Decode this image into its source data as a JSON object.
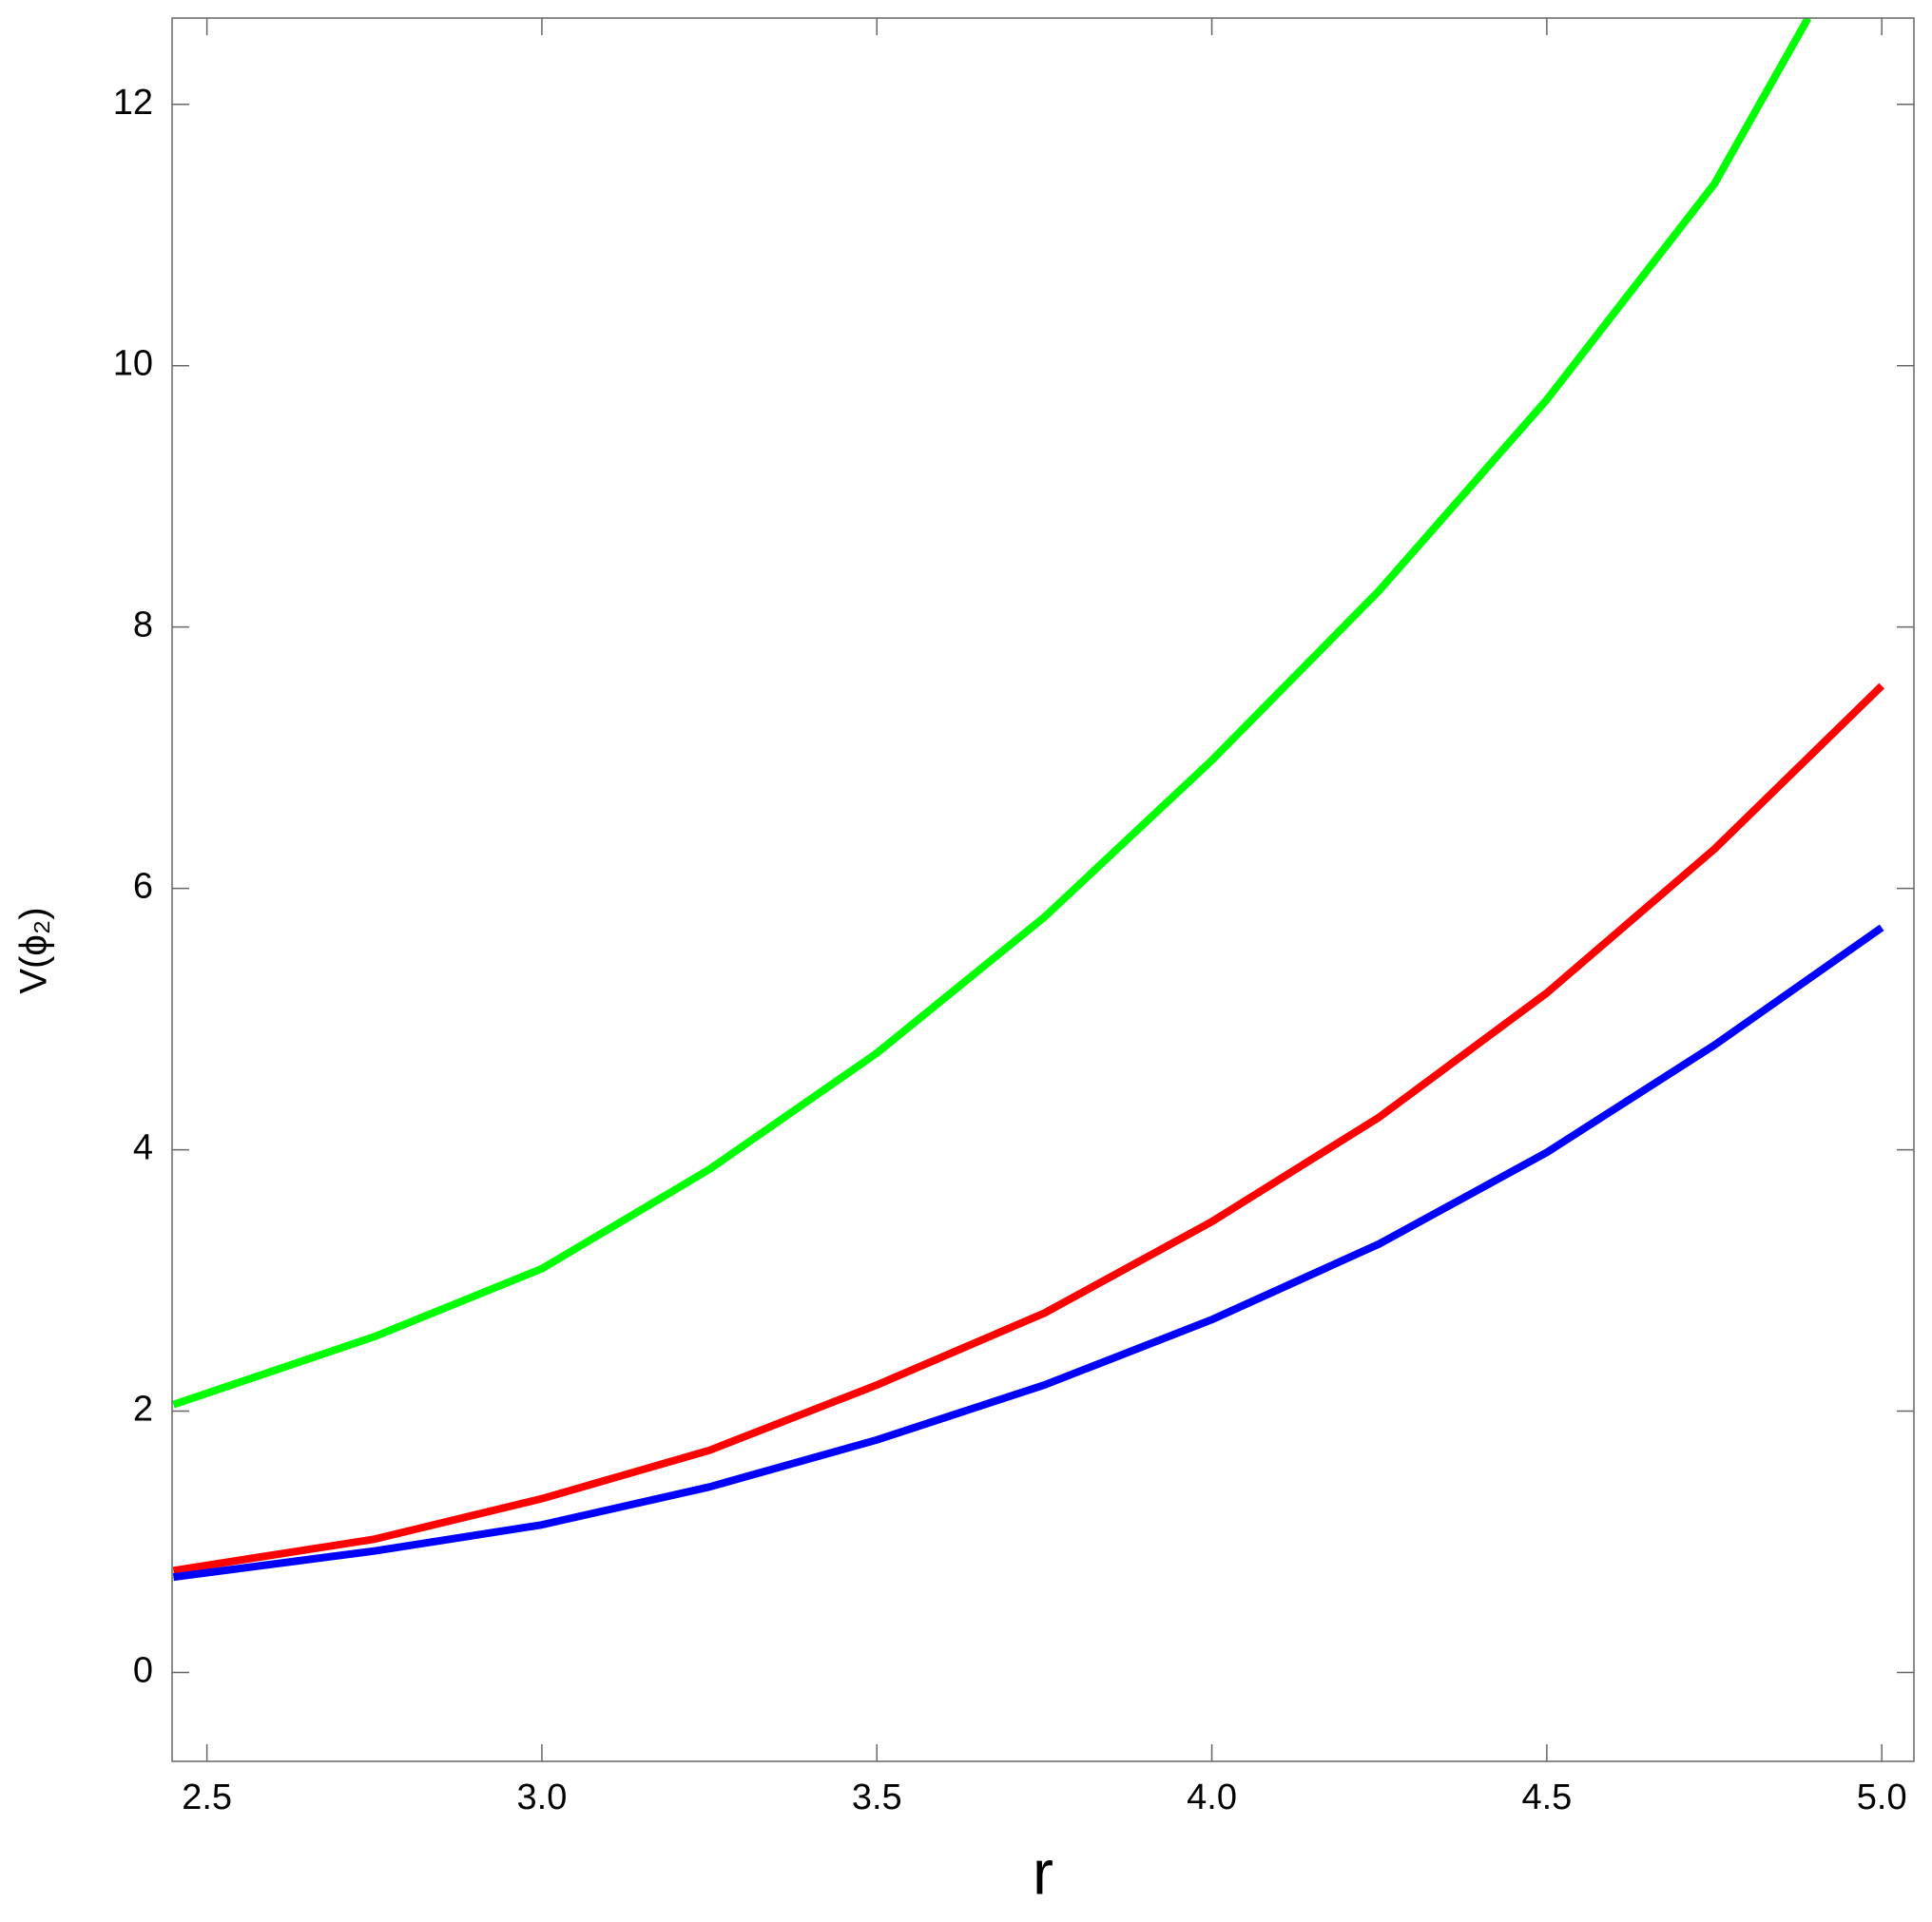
{
  "chart_data": {
    "type": "line",
    "x_label": "r",
    "y_label": "V(ϕ₂)",
    "xlim": [
      2.448,
      5.048
    ],
    "ylim": [
      -0.68,
      12.66
    ],
    "xticks": [
      2.5,
      {
        "value": 3.0,
        "label": "3.0"
      },
      3.5,
      {
        "value": 4.0,
        "label": "4.0"
      },
      4.5,
      {
        "value": 5.0,
        "label": "5.0"
      }
    ],
    "yticks": [
      0,
      2,
      4,
      6,
      8,
      10,
      12
    ],
    "line_width": 8,
    "series": [
      {
        "color": "#00ff00",
        "x": [
          2.45,
          2.75,
          3.0,
          3.25,
          3.5,
          3.75,
          4.0,
          4.25,
          4.5,
          4.75,
          4.89
        ],
        "values": [
          2.05,
          2.57,
          3.09,
          3.85,
          4.74,
          5.78,
          6.98,
          8.28,
          9.74,
          11.39,
          12.66
        ]
      },
      {
        "color": "#ff0000",
        "x": [
          2.45,
          2.75,
          3.0,
          3.25,
          3.5,
          3.75,
          4.0,
          4.25,
          4.5,
          4.75,
          5.0
        ],
        "values": [
          0.78,
          1.02,
          1.33,
          1.7,
          2.2,
          2.75,
          3.45,
          4.25,
          5.2,
          6.3,
          7.55
        ]
      },
      {
        "color": "#0000ff",
        "x": [
          2.45,
          2.75,
          3.0,
          3.25,
          3.5,
          3.75,
          4.0,
          4.25,
          4.5,
          4.75,
          5.0
        ],
        "values": [
          0.73,
          0.93,
          1.13,
          1.42,
          1.78,
          2.2,
          2.7,
          3.28,
          3.98,
          4.8,
          5.7
        ]
      }
    ]
  }
}
